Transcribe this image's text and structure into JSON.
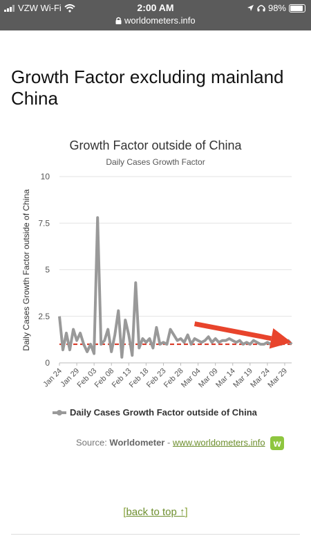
{
  "status_bar": {
    "carrier": "VZW Wi-Fi",
    "time": "2:00 AM",
    "url": "worldometers.info",
    "battery": "98%",
    "battery_level": 0.98
  },
  "page_title": "Growth Factor excluding mainland China",
  "chart_data": {
    "type": "line",
    "title": "Growth Factor outside of China",
    "subtitle": "Daily Cases Growth Factor",
    "ylabel": "Daily Cases Growth Factor outside of China",
    "xlabel": "",
    "ylim": [
      0,
      10
    ],
    "y_ticks": [
      "0",
      "2.5",
      "5",
      "7.5",
      "10"
    ],
    "x_tick_labels": [
      "Jan 24",
      "Jan 29",
      "Feb 03",
      "Feb 08",
      "Feb 13",
      "Feb 18",
      "Feb 23",
      "Feb 28",
      "Mar 04",
      "Mar 09",
      "Mar 14",
      "Mar 19",
      "Mar 24",
      "Mar 29"
    ],
    "grid": true,
    "legend_position": "bottom",
    "series": [
      {
        "name": "Daily Cases Growth Factor outside of China",
        "color": "#999999",
        "values": [
          2.5,
          0.7,
          1.6,
          0.7,
          1.8,
          1.2,
          1.6,
          1.0,
          0.6,
          1.0,
          0.5,
          7.8,
          1.0,
          1.2,
          1.8,
          0.6,
          1.5,
          2.8,
          0.3,
          2.3,
          1.5,
          0.4,
          4.3,
          0.8,
          1.3,
          1.1,
          1.3,
          0.8,
          1.9,
          1.0,
          1.1,
          1.0,
          1.8,
          1.5,
          1.2,
          1.3,
          1.1,
          1.5,
          1.0,
          1.3,
          1.2,
          1.1,
          1.2,
          1.4,
          1.1,
          1.3,
          1.1,
          1.2,
          1.2,
          1.3,
          1.2,
          1.1,
          1.2,
          1.0,
          1.1,
          1.0,
          1.2,
          1.1,
          1.0,
          1.0,
          1.1,
          1.0,
          1.0,
          1.0,
          1.0,
          1.1,
          1.2,
          1.0
        ]
      }
    ],
    "reference_line": {
      "value": 1.0,
      "color": "#d62c1a",
      "style": "dashed"
    },
    "annotation_arrow": {
      "color": "#e8442c",
      "from": {
        "x_index": 39,
        "y": 2.1
      },
      "to": {
        "x_index": 67,
        "y": 1.1
      }
    },
    "legend_icon": "line-marker-icon"
  },
  "source": {
    "prefix": "Source: ",
    "brand": "Worldometer",
    "separator": " - ",
    "link": "www.worldometers.info",
    "logo_letter": "w"
  },
  "back_to_top": {
    "open": "[",
    "label": "back to top ↑",
    "close": "]"
  },
  "icons": {
    "signal": "signal-icon",
    "wifi": "wifi-icon",
    "lock": "lock-icon",
    "location": "location-icon",
    "headphones": "headphones-icon",
    "battery": "battery-icon"
  }
}
